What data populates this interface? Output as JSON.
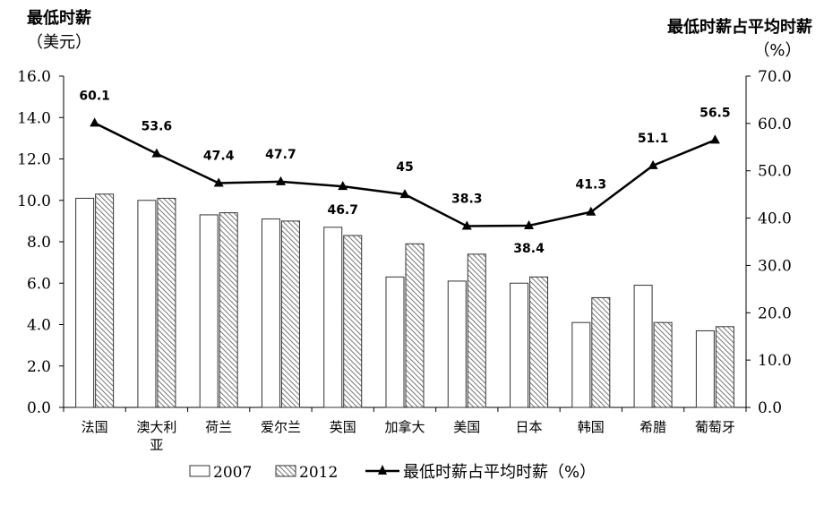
{
  "chart_data": {
    "type": "bar+line",
    "left_axis_title": [
      "最低时薪",
      "（美元）"
    ],
    "right_axis_title": [
      "最低时薪占平均时薪",
      "（%）"
    ],
    "categories": [
      [
        "法国"
      ],
      [
        "澳大利",
        "亚"
      ],
      [
        "荷兰"
      ],
      [
        "爱尔兰"
      ],
      [
        "英国"
      ],
      [
        "加拿大"
      ],
      [
        "美国"
      ],
      [
        "日本"
      ],
      [
        "韩国"
      ],
      [
        "希腊"
      ],
      [
        "葡萄牙"
      ]
    ],
    "left_ylim": [
      0,
      16
    ],
    "left_ticks": [
      "0.0",
      "2.0",
      "4.0",
      "6.0",
      "8.0",
      "10.0",
      "12.0",
      "14.0",
      "16.0"
    ],
    "right_ylim": [
      0,
      70
    ],
    "right_ticks": [
      "0.0",
      "10.0",
      "20.0",
      "30.0",
      "40.0",
      "50.0",
      "60.0",
      "70.0"
    ],
    "bar_series": [
      {
        "name": "2007",
        "style": "hollow",
        "values": [
          10.1,
          10.0,
          9.3,
          9.1,
          8.7,
          6.3,
          6.1,
          6.0,
          4.1,
          5.9,
          3.7
        ]
      },
      {
        "name": "2012",
        "style": "hatched",
        "values": [
          10.3,
          10.1,
          9.4,
          9.0,
          8.3,
          7.9,
          7.4,
          6.3,
          5.3,
          4.1,
          3.9
        ]
      }
    ],
    "line_series": {
      "name": "最低时薪占平均时薪（%）",
      "axis": "right",
      "marker": "triangle",
      "values": [
        60.1,
        53.6,
        47.4,
        47.7,
        46.7,
        45,
        38.3,
        38.4,
        41.3,
        51.1,
        56.5
      ],
      "labels": [
        "60.1",
        "53.6",
        "47.4",
        "47.7",
        "46.7",
        "45",
        "38.3",
        "38.4",
        "41.3",
        "51.1",
        "56.5"
      ]
    },
    "legend_position": "bottom-center",
    "grid": false
  }
}
